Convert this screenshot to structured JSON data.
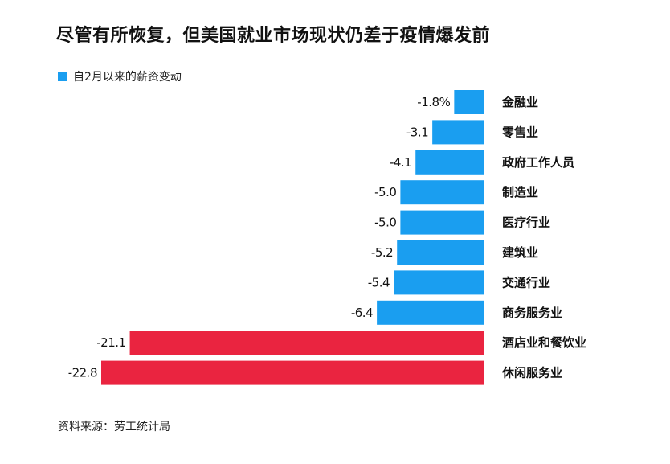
{
  "header": {
    "title": "尽管有所恢复，但美国就业市场现状仍差于疫情爆发前"
  },
  "legend": {
    "label": "自2月以来的薪资变动"
  },
  "footer": {
    "source": "资料来源：劳工统计局"
  },
  "colors": {
    "normal": "#1a9ef0",
    "highlight": "#ea2440",
    "text": "#111111"
  },
  "chart_data": {
    "type": "bar",
    "orientation": "horizontal",
    "title": "尽管有所恢复，但美国就业市场现状仍差于疫情爆发前",
    "series_name": "自2月以来的薪资变动",
    "categories": [
      "金融业",
      "零售业",
      "政府工作人员",
      "制造业",
      "医疗行业",
      "建筑业",
      "交通行业",
      "商务服务业",
      "酒店业和餐饮业",
      "休闲服务业"
    ],
    "values": [
      -1.8,
      -3.1,
      -4.1,
      -5.0,
      -5.0,
      -5.2,
      -5.4,
      -6.4,
      -21.1,
      -22.8
    ],
    "value_labels": [
      "-1.8%",
      "-3.1",
      "-4.1",
      "-5.0",
      "-5.0",
      "-5.2",
      "-5.4",
      "-6.4",
      "-21.1",
      "-22.8"
    ],
    "highlight": [
      false,
      false,
      false,
      false,
      false,
      false,
      false,
      false,
      true,
      true
    ],
    "xlim": [
      -22.8,
      0
    ],
    "grid": false,
    "legend_position": "top-left"
  }
}
